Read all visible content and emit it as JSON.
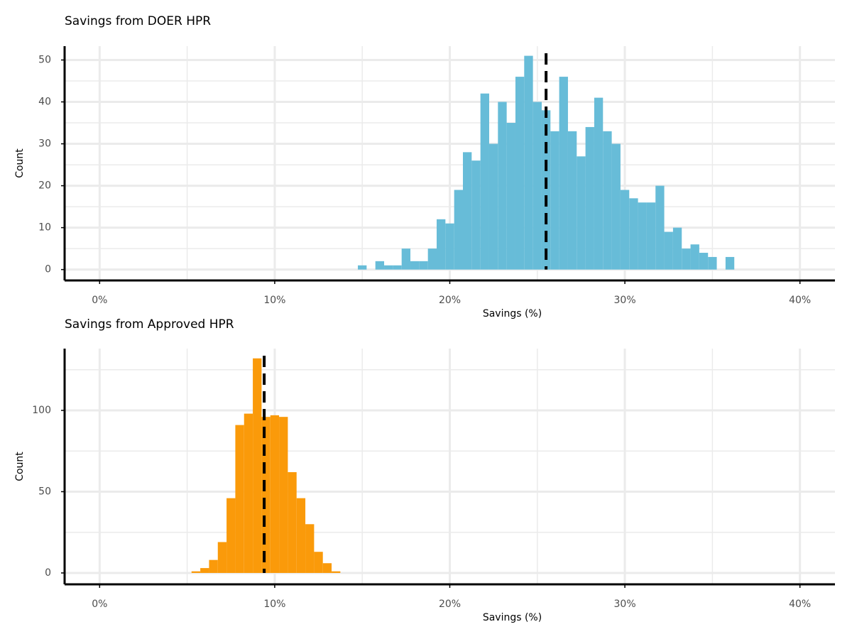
{
  "chart_data": [
    {
      "type": "histogram",
      "title": "Savings from DOER HPR",
      "xlabel": "Savings (%)",
      "ylabel": "Count",
      "bins": [
        14.75,
        15.25,
        15.75,
        16.25,
        16.75,
        17.25,
        17.75,
        18.25,
        18.75,
        19.25,
        19.75,
        20.25,
        20.75,
        21.25,
        21.75,
        22.25,
        22.75,
        23.25,
        23.75,
        24.25,
        24.75,
        25.25,
        25.75,
        26.25,
        26.75,
        27.25,
        27.75,
        28.25,
        28.75,
        29.25,
        29.75,
        30.25,
        30.75,
        31.25,
        31.75,
        32.25,
        32.75,
        33.25,
        33.75,
        34.25,
        34.75,
        35.25,
        35.75,
        36.25
      ],
      "values": [
        1,
        0,
        2,
        1,
        1,
        5,
        2,
        2,
        5,
        12,
        11,
        19,
        28,
        26,
        42,
        30,
        40,
        35,
        46,
        51,
        40,
        38,
        33,
        46,
        33,
        27,
        34,
        41,
        33,
        30,
        19,
        17,
        16,
        16,
        20,
        9,
        10,
        5,
        6,
        4,
        3,
        0,
        3
      ],
      "color": "#67bcd8",
      "vline": 25.5,
      "xlim": [
        -2,
        42
      ],
      "ylim": [
        -2.6,
        53.3
      ],
      "xticks": [
        {
          "value": 0,
          "label": "0%"
        },
        {
          "value": 10,
          "label": "10%"
        },
        {
          "value": 20,
          "label": "20%"
        },
        {
          "value": 30,
          "label": "30%"
        },
        {
          "value": 40,
          "label": "40%"
        }
      ],
      "yticks": [
        0,
        10,
        20,
        30,
        40,
        50
      ],
      "grid": true,
      "minor_grid": true
    },
    {
      "type": "histogram",
      "title": "Savings from Approved HPR",
      "xlabel": "Savings (%)",
      "ylabel": "Count",
      "bins": [
        5.25,
        5.75,
        6.25,
        6.75,
        7.25,
        7.75,
        8.25,
        8.75,
        9.25,
        9.75,
        10.25,
        10.75,
        11.25,
        11.75,
        12.25,
        12.75,
        13.25,
        13.75
      ],
      "values": [
        1,
        3,
        8,
        19,
        46,
        91,
        98,
        132,
        96,
        97,
        96,
        62,
        46,
        30,
        13,
        6,
        1
      ],
      "color": "#fa9a0a",
      "vline": 9.4,
      "xlim": [
        -2,
        42
      ],
      "ylim": [
        -7,
        138
      ],
      "xticks": [
        {
          "value": 0,
          "label": "0%"
        },
        {
          "value": 10,
          "label": "10%"
        },
        {
          "value": 20,
          "label": "20%"
        },
        {
          "value": 30,
          "label": "30%"
        },
        {
          "value": 40,
          "label": "40%"
        }
      ],
      "yticks": [
        0,
        50,
        100
      ],
      "grid": true,
      "minor_grid": true
    }
  ]
}
